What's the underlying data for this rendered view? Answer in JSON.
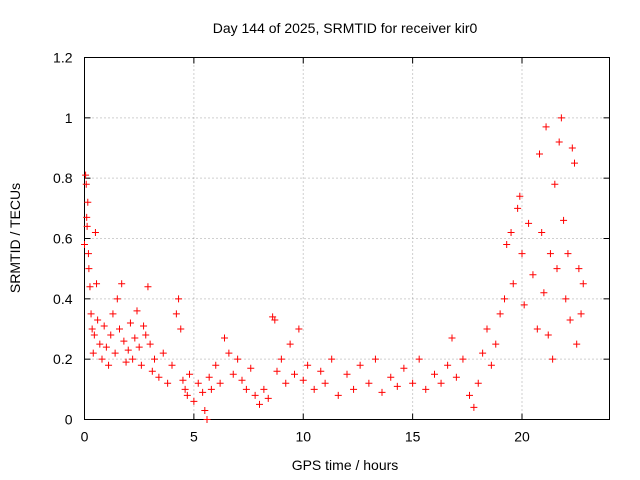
{
  "chart_data": {
    "type": "scatter",
    "title": "Day 144 of 2025, SRMTID for receiver kir0",
    "xlabel": "GPS time / hours",
    "ylabel": "SRMTID / TECUs",
    "xlim": [
      0,
      24
    ],
    "ylim": [
      0,
      1.2
    ],
    "xticks": [
      0,
      5,
      10,
      15,
      20
    ],
    "yticks": [
      0,
      0.2,
      0.4,
      0.6,
      0.8,
      1,
      1.2
    ],
    "xtick_labels": [
      "0",
      "5",
      "10",
      "15",
      "20"
    ],
    "ytick_labels": [
      "0",
      "0.2",
      "0.4",
      "0.6",
      "0.8",
      "1",
      "1.2"
    ],
    "grid": true,
    "marker": "plus",
    "color": "#ff0000",
    "series": [
      {
        "name": "SRMTID",
        "points": [
          [
            0.0,
            0.58
          ],
          [
            0.05,
            0.81
          ],
          [
            0.08,
            0.78
          ],
          [
            0.1,
            0.67
          ],
          [
            0.12,
            0.64
          ],
          [
            0.15,
            0.72
          ],
          [
            0.18,
            0.55
          ],
          [
            0.2,
            0.5
          ],
          [
            0.25,
            0.44
          ],
          [
            0.3,
            0.35
          ],
          [
            0.35,
            0.3
          ],
          [
            0.4,
            0.22
          ],
          [
            0.45,
            0.28
          ],
          [
            0.5,
            0.62
          ],
          [
            0.55,
            0.45
          ],
          [
            0.6,
            0.33
          ],
          [
            0.7,
            0.25
          ],
          [
            0.8,
            0.2
          ],
          [
            0.9,
            0.31
          ],
          [
            1.0,
            0.24
          ],
          [
            1.1,
            0.18
          ],
          [
            1.2,
            0.28
          ],
          [
            1.3,
            0.35
          ],
          [
            1.4,
            0.22
          ],
          [
            1.5,
            0.4
          ],
          [
            1.6,
            0.3
          ],
          [
            1.7,
            0.45
          ],
          [
            1.8,
            0.26
          ],
          [
            1.9,
            0.19
          ],
          [
            2.0,
            0.23
          ],
          [
            2.1,
            0.32
          ],
          [
            2.2,
            0.2
          ],
          [
            2.3,
            0.27
          ],
          [
            2.4,
            0.36
          ],
          [
            2.5,
            0.24
          ],
          [
            2.6,
            0.18
          ],
          [
            2.7,
            0.31
          ],
          [
            2.8,
            0.28
          ],
          [
            2.9,
            0.44
          ],
          [
            3.0,
            0.25
          ],
          [
            3.1,
            0.16
          ],
          [
            3.2,
            0.2
          ],
          [
            3.4,
            0.14
          ],
          [
            3.6,
            0.22
          ],
          [
            3.8,
            0.12
          ],
          [
            4.0,
            0.18
          ],
          [
            4.2,
            0.35
          ],
          [
            4.3,
            0.4
          ],
          [
            4.4,
            0.3
          ],
          [
            4.5,
            0.13
          ],
          [
            4.6,
            0.1
          ],
          [
            4.7,
            0.08
          ],
          [
            4.8,
            0.15
          ],
          [
            5.0,
            0.06
          ],
          [
            5.2,
            0.12
          ],
          [
            5.4,
            0.09
          ],
          [
            5.5,
            0.03
          ],
          [
            5.6,
            0.0
          ],
          [
            5.7,
            0.14
          ],
          [
            5.8,
            0.1
          ],
          [
            6.0,
            0.18
          ],
          [
            6.2,
            0.12
          ],
          [
            6.4,
            0.27
          ],
          [
            6.6,
            0.22
          ],
          [
            6.8,
            0.15
          ],
          [
            7.0,
            0.2
          ],
          [
            7.2,
            0.13
          ],
          [
            7.4,
            0.1
          ],
          [
            7.6,
            0.17
          ],
          [
            7.8,
            0.08
          ],
          [
            8.0,
            0.05
          ],
          [
            8.2,
            0.1
          ],
          [
            8.4,
            0.07
          ],
          [
            8.6,
            0.34
          ],
          [
            8.7,
            0.33
          ],
          [
            8.8,
            0.16
          ],
          [
            9.0,
            0.2
          ],
          [
            9.2,
            0.12
          ],
          [
            9.4,
            0.25
          ],
          [
            9.6,
            0.15
          ],
          [
            9.8,
            0.3
          ],
          [
            10.0,
            0.13
          ],
          [
            10.2,
            0.18
          ],
          [
            10.5,
            0.1
          ],
          [
            10.8,
            0.16
          ],
          [
            11.0,
            0.12
          ],
          [
            11.3,
            0.2
          ],
          [
            11.6,
            0.08
          ],
          [
            12.0,
            0.15
          ],
          [
            12.3,
            0.1
          ],
          [
            12.6,
            0.18
          ],
          [
            13.0,
            0.12
          ],
          [
            13.3,
            0.2
          ],
          [
            13.6,
            0.09
          ],
          [
            14.0,
            0.14
          ],
          [
            14.3,
            0.11
          ],
          [
            14.6,
            0.17
          ],
          [
            15.0,
            0.12
          ],
          [
            15.3,
            0.2
          ],
          [
            15.6,
            0.1
          ],
          [
            16.0,
            0.15
          ],
          [
            16.3,
            0.12
          ],
          [
            16.6,
            0.18
          ],
          [
            16.8,
            0.27
          ],
          [
            17.0,
            0.14
          ],
          [
            17.3,
            0.2
          ],
          [
            17.6,
            0.08
          ],
          [
            17.8,
            0.04
          ],
          [
            18.0,
            0.12
          ],
          [
            18.2,
            0.22
          ],
          [
            18.4,
            0.3
          ],
          [
            18.6,
            0.18
          ],
          [
            18.8,
            0.25
          ],
          [
            19.0,
            0.35
          ],
          [
            19.2,
            0.4
          ],
          [
            19.3,
            0.58
          ],
          [
            19.5,
            0.62
          ],
          [
            19.6,
            0.45
          ],
          [
            19.8,
            0.7
          ],
          [
            19.9,
            0.74
          ],
          [
            20.0,
            0.55
          ],
          [
            20.1,
            0.38
          ],
          [
            20.3,
            0.65
          ],
          [
            20.5,
            0.48
          ],
          [
            20.7,
            0.3
          ],
          [
            20.8,
            0.88
          ],
          [
            20.9,
            0.62
          ],
          [
            21.0,
            0.42
          ],
          [
            21.1,
            0.97
          ],
          [
            21.2,
            0.28
          ],
          [
            21.3,
            0.55
          ],
          [
            21.4,
            0.2
          ],
          [
            21.5,
            0.78
          ],
          [
            21.6,
            0.5
          ],
          [
            21.7,
            0.92
          ],
          [
            21.8,
            1.0
          ],
          [
            21.9,
            0.66
          ],
          [
            22.0,
            0.4
          ],
          [
            22.1,
            0.55
          ],
          [
            22.2,
            0.33
          ],
          [
            22.3,
            0.9
          ],
          [
            22.4,
            0.85
          ],
          [
            22.5,
            0.25
          ],
          [
            22.6,
            0.5
          ],
          [
            22.7,
            0.35
          ],
          [
            22.8,
            0.45
          ]
        ]
      }
    ]
  }
}
